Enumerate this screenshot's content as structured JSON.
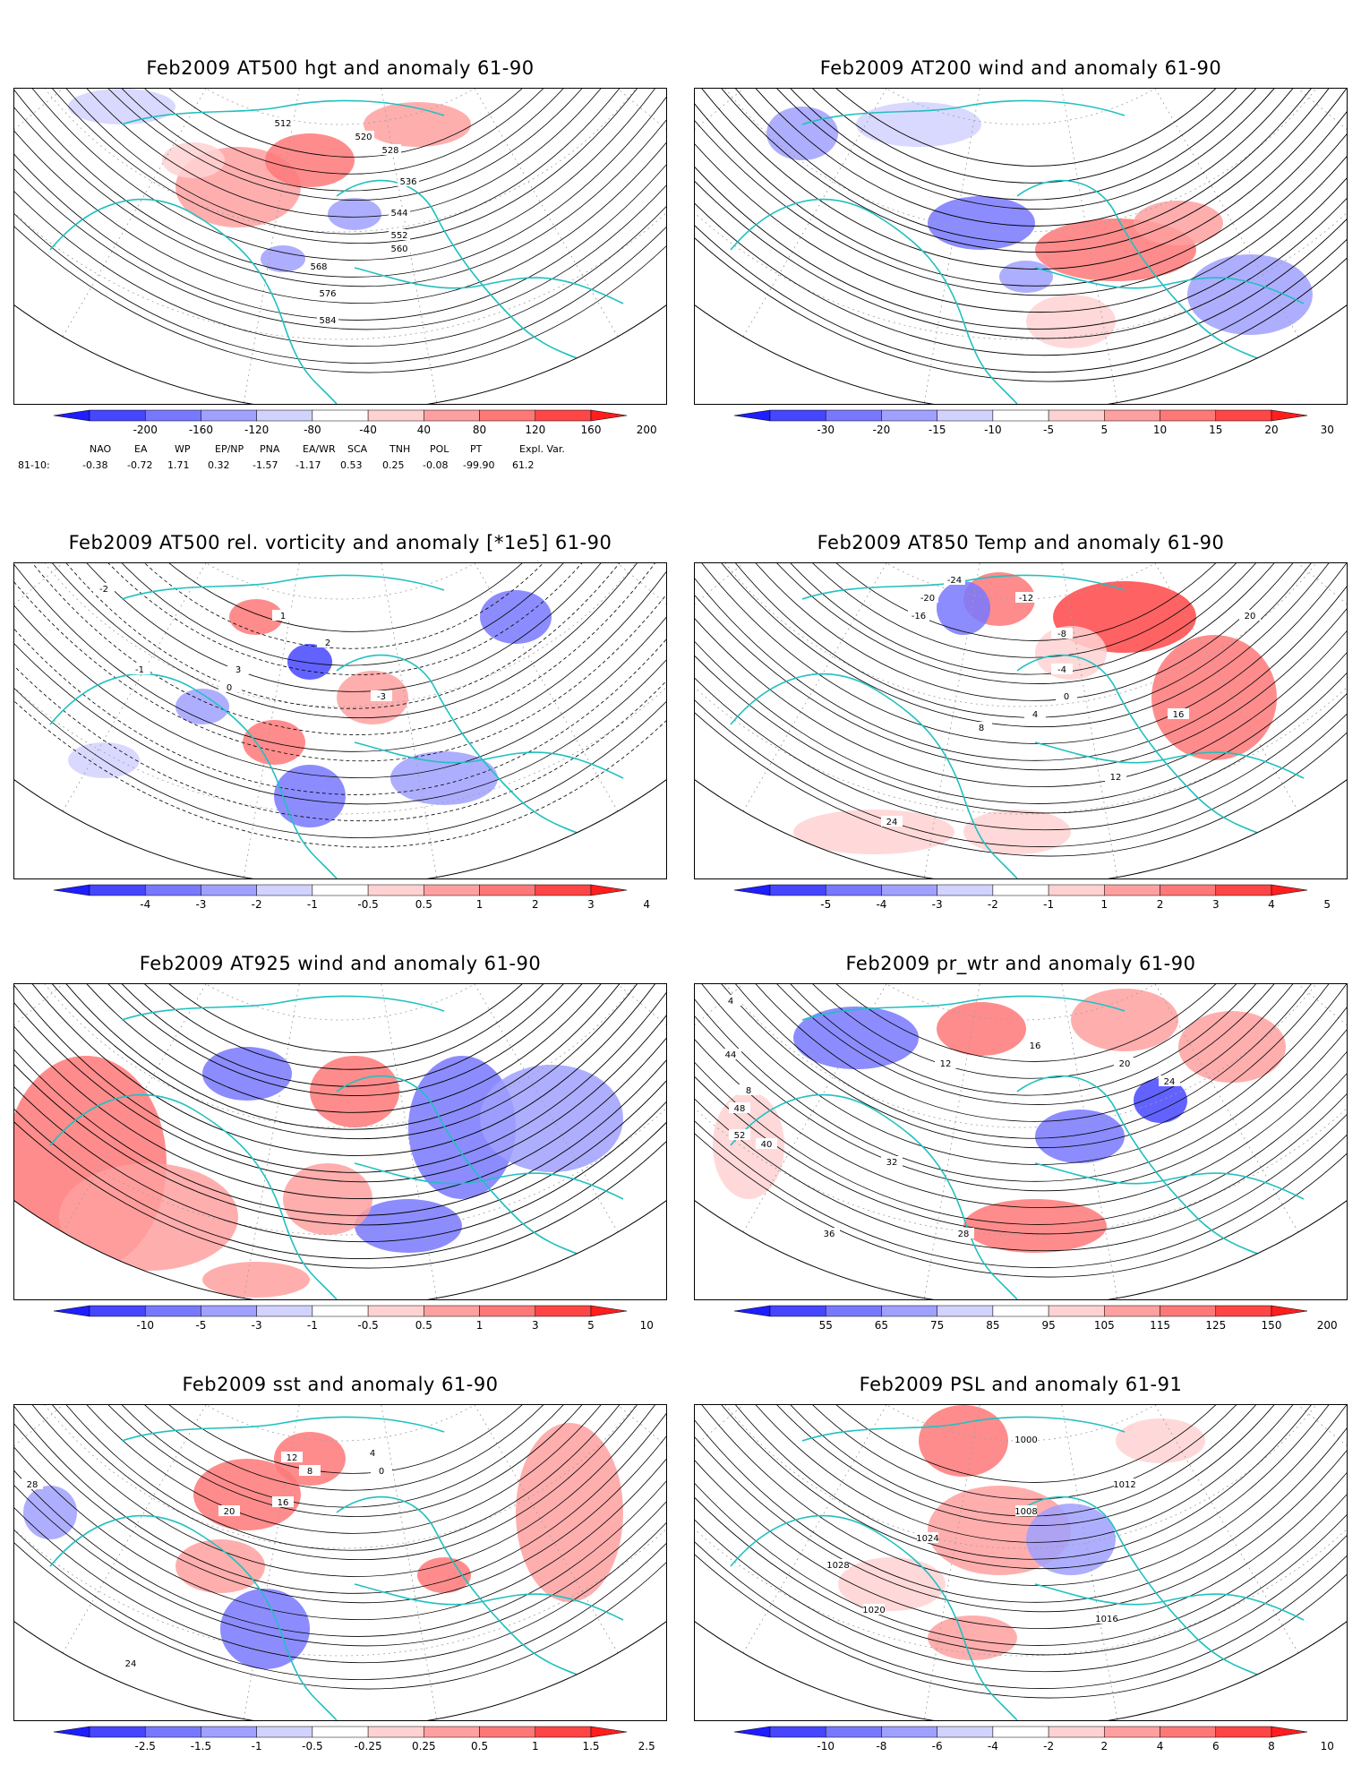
{
  "panels": [
    {
      "title": "Feb2009 AT500 hgt and anomaly 61-90",
      "contour_labels": [
        "512",
        "520",
        "528",
        "536",
        "544",
        "552",
        "560",
        "568",
        "576",
        "584"
      ],
      "colorbar": {
        "ticks": [
          "-200",
          "-160",
          "-120",
          "-80",
          "-40",
          "40",
          "80",
          "120",
          "160",
          "200"
        ],
        "colors": [
          "#1e1eff",
          "#4646ff",
          "#7878ff",
          "#a0a0ff",
          "#d2d2ff",
          "#ffffff",
          "#ffd2d2",
          "#ffa0a0",
          "#ff7878",
          "#ff4646",
          "#ff1e1e"
        ]
      }
    },
    {
      "title": "Feb2009 AT200 wind and anomaly 61-90",
      "contour_labels": [],
      "colorbar": {
        "ticks": [
          "-30",
          "-20",
          "-15",
          "-10",
          "-5",
          "5",
          "10",
          "15",
          "20",
          "30"
        ],
        "colors": [
          "#1e1eff",
          "#4646ff",
          "#7878ff",
          "#a0a0ff",
          "#d2d2ff",
          "#ffffff",
          "#ffd2d2",
          "#ffa0a0",
          "#ff7878",
          "#ff4646",
          "#ff1e1e"
        ]
      }
    },
    {
      "title": "Feb2009 AT500 rel. vorticity and anomaly [*1e5] 61-90",
      "contour_labels": [
        "-2",
        "-1",
        "0",
        "1",
        "2",
        "3",
        "-3"
      ],
      "colorbar": {
        "ticks": [
          "-4",
          "-3",
          "-2",
          "-1",
          "-0.5",
          "0.5",
          "1",
          "2",
          "3",
          "4"
        ],
        "colors": [
          "#1e1eff",
          "#4646ff",
          "#7878ff",
          "#a0a0ff",
          "#d2d2ff",
          "#ffffff",
          "#ffd2d2",
          "#ffa0a0",
          "#ff7878",
          "#ff4646",
          "#ff1e1e"
        ]
      }
    },
    {
      "title": "Feb2009 AT850 Temp and anomaly 61-90",
      "contour_labels": [
        "-24",
        "-20",
        "-16",
        "-12",
        "-8",
        "-4",
        "0",
        "4",
        "8",
        "12",
        "16",
        "20",
        "24"
      ],
      "colorbar": {
        "ticks": [
          "-5",
          "-4",
          "-3",
          "-2",
          "-1",
          "1",
          "2",
          "3",
          "4",
          "5"
        ],
        "colors": [
          "#1e1eff",
          "#4646ff",
          "#7878ff",
          "#a0a0ff",
          "#d2d2ff",
          "#ffffff",
          "#ffd2d2",
          "#ffa0a0",
          "#ff7878",
          "#ff4646",
          "#ff1e1e"
        ]
      }
    },
    {
      "title": "Feb2009 AT925 wind and anomaly 61-90",
      "contour_labels": [],
      "colorbar": {
        "ticks": [
          "-10",
          "-5",
          "-3",
          "-1",
          "-0.5",
          "0.5",
          "1",
          "3",
          "5",
          "10"
        ],
        "colors": [
          "#1e1eff",
          "#4646ff",
          "#7878ff",
          "#a0a0ff",
          "#d2d2ff",
          "#ffffff",
          "#ffd2d2",
          "#ffa0a0",
          "#ff7878",
          "#ff4646",
          "#ff1e1e"
        ]
      }
    },
    {
      "title": "Feb2009 pr_wtr and anomaly 61-90",
      "contour_labels": [
        "4",
        "8",
        "12",
        "16",
        "20",
        "24",
        "28",
        "32",
        "36",
        "40",
        "44",
        "48",
        "52"
      ],
      "colorbar": {
        "ticks": [
          "55",
          "65",
          "75",
          "85",
          "95",
          "105",
          "115",
          "125",
          "150",
          "200"
        ],
        "colors": [
          "#1e1eff",
          "#4646ff",
          "#7878ff",
          "#a0a0ff",
          "#d2d2ff",
          "#ffffff",
          "#ffd2d2",
          "#ffa0a0",
          "#ff7878",
          "#ff4646",
          "#ff1e1e"
        ]
      }
    },
    {
      "title": "Feb2009 sst and anomaly 61-90",
      "contour_labels": [
        "28",
        "24",
        "20",
        "16",
        "12",
        "8",
        "4",
        "0"
      ],
      "colorbar": {
        "ticks": [
          "-2.5",
          "-1.5",
          "-1",
          "-0.5",
          "-0.25",
          "0.25",
          "0.5",
          "1",
          "1.5",
          "2.5"
        ],
        "colors": [
          "#1e1eff",
          "#4646ff",
          "#7878ff",
          "#a0a0ff",
          "#d2d2ff",
          "#ffffff",
          "#ffd2d2",
          "#ffa0a0",
          "#ff7878",
          "#ff4646",
          "#ff1e1e"
        ]
      }
    },
    {
      "title": "Feb2009 PSL and anomaly 61-91",
      "contour_labels": [
        "1000",
        "1008",
        "1012",
        "1016",
        "1020",
        "1024",
        "1028"
      ],
      "colorbar": {
        "ticks": [
          "-10",
          "-8",
          "-6",
          "-4",
          "-2",
          "2",
          "4",
          "6",
          "8",
          "10"
        ],
        "colors": [
          "#1e1eff",
          "#4646ff",
          "#7878ff",
          "#a0a0ff",
          "#d2d2ff",
          "#ffffff",
          "#ffd2d2",
          "#ffa0a0",
          "#ff7878",
          "#ff4646",
          "#ff1e1e"
        ]
      }
    }
  ],
  "teleconnections": {
    "headers": [
      "NAO",
      "EA",
      "WP",
      "EP/NP",
      "PNA",
      "EA/WR",
      "SCA",
      "TNH",
      "POL",
      "PT",
      "Expl. Var."
    ],
    "row_label": "81-10:",
    "values": [
      "-0.38",
      "-0.72",
      "1.71",
      "0.32",
      "-1.57",
      "-1.17",
      "0.53",
      "0.25",
      "-0.08",
      "-99.90",
      "61.2"
    ]
  },
  "colors": {
    "coastline": "#20c0c0",
    "contour": "#000000",
    "grid": "#a0a0a0"
  }
}
